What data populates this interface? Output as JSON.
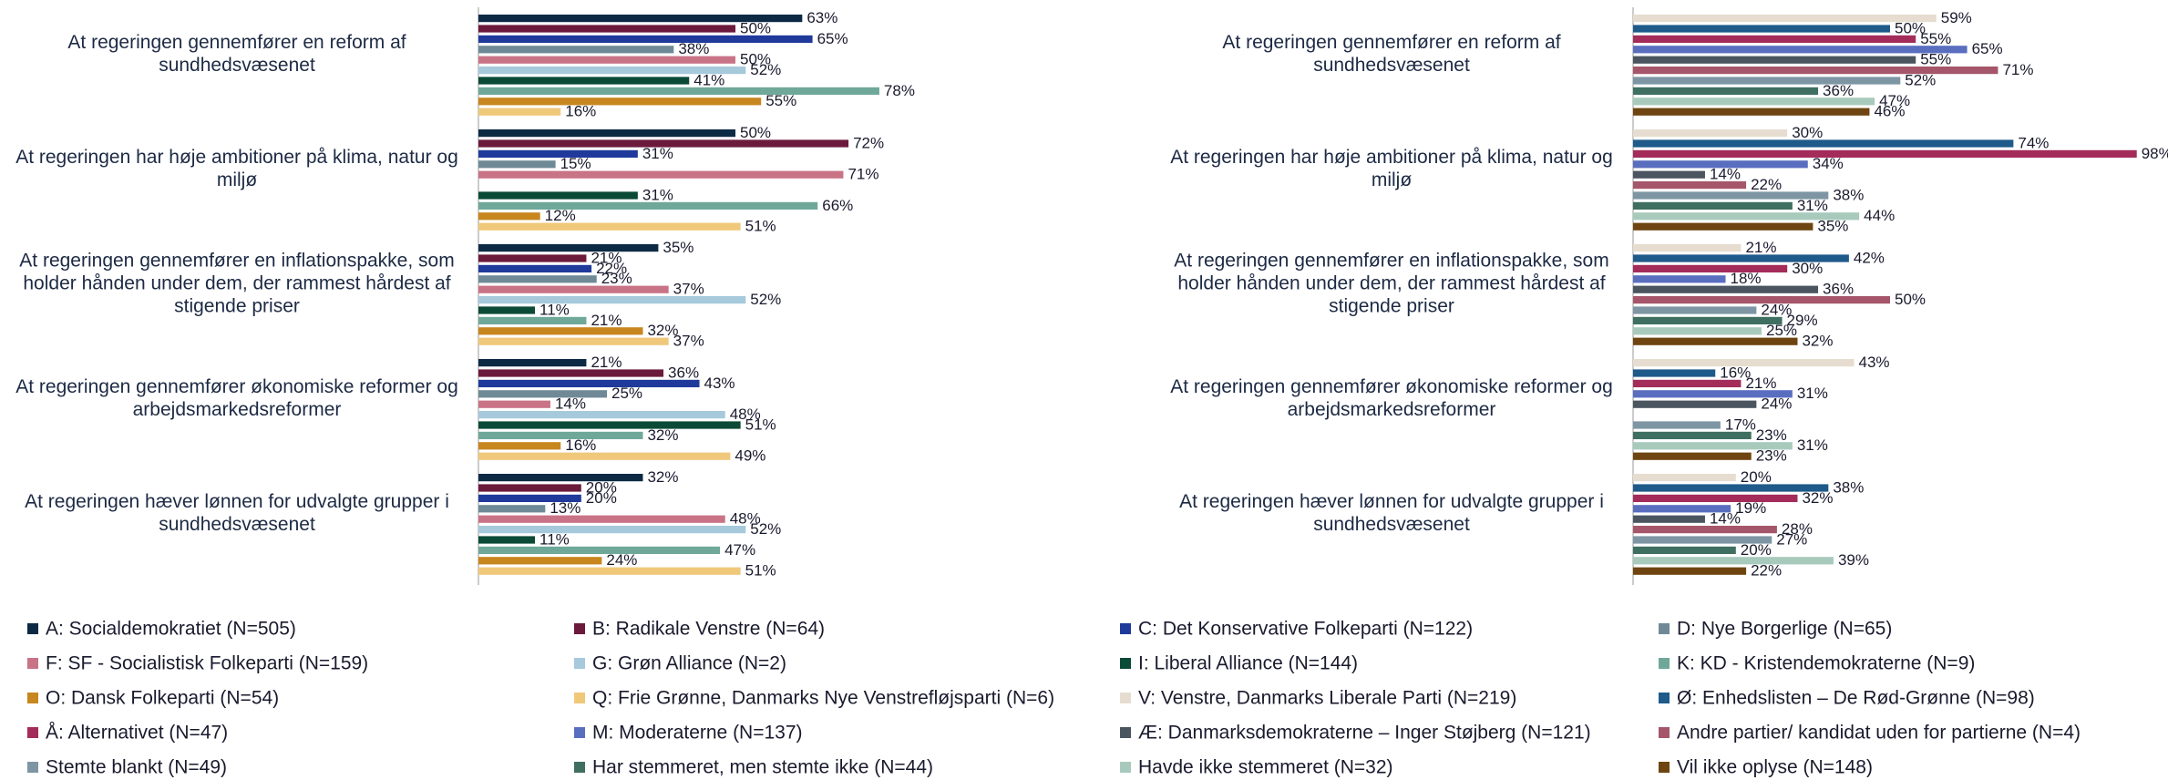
{
  "chart_data": [
    {
      "type": "bar",
      "categories": [
        "At regeringen gennemfører en reform af sundhedsvæsenet",
        "At regeringen har høje ambitioner på klima, natur og miljø",
        "At regeringen gennemfører en inflationspakke, som holder hånden under dem, der rammest hårdest af stigende priser",
        "At regeringen gennemfører økonomiske reformer og arbejdsmarkedsreformer",
        "At regeringen hæver lønnen for udvalgte grupper i sundhedsvæsenet"
      ],
      "xlim": [
        0,
        100
      ],
      "series": [
        {
          "name": "A: Socialdemokratiet (N=505)",
          "color": "#0d2a45",
          "values": [
            63,
            50,
            35,
            21,
            32
          ],
          "value_labels": [
            "63%",
            "50%",
            "35%",
            "21%",
            "32%"
          ]
        },
        {
          "name": "B: Radikale Venstre (N=64)",
          "color": "#6b1a3c",
          "values": [
            50,
            72,
            21,
            36,
            20
          ],
          "value_labels": [
            "50%",
            "72%",
            "21%",
            "36%",
            "20%"
          ]
        },
        {
          "name": "C: Det Konservative Folkeparti (N=122)",
          "color": "#1f3a9b",
          "values": [
            65,
            31,
            22,
            43,
            20
          ],
          "value_labels": [
            "65%",
            "31%",
            "22%",
            "43%",
            "20%"
          ]
        },
        {
          "name": "D: Nye Borgerlige (N=65)",
          "color": "#6f8a96",
          "values": [
            38,
            15,
            23,
            25,
            13
          ],
          "value_labels": [
            "38%",
            "15%",
            "23%",
            "25%",
            "13%"
          ]
        },
        {
          "name": "F: SF - Socialistisk Folkeparti (N=159)",
          "color": "#c97387",
          "values": [
            50,
            71,
            37,
            14,
            48
          ],
          "value_labels": [
            "50%",
            "71%",
            "37%",
            "14%",
            "48%"
          ]
        },
        {
          "name": "G: Grøn Alliance (N=2)",
          "color": "#a6c9dc",
          "values": [
            52,
            null,
            52,
            48,
            52
          ],
          "value_labels": [
            "52%",
            null,
            "52%",
            "48%",
            "52%"
          ]
        },
        {
          "name": "I: Liberal Alliance (N=144)",
          "color": "#0b4a36",
          "values": [
            41,
            31,
            11,
            51,
            11
          ],
          "value_labels": [
            "41%",
            "31%",
            "11%",
            "51%",
            "11%"
          ]
        },
        {
          "name": "K: KD - Kristendemokraterne (N=9)",
          "color": "#6fa899",
          "values": [
            78,
            66,
            21,
            32,
            47
          ],
          "value_labels": [
            "78%",
            "66%",
            "21%",
            "32%",
            "47%"
          ]
        },
        {
          "name": "O: Dansk Folkeparti (N=54)",
          "color": "#c8861e",
          "values": [
            55,
            12,
            32,
            16,
            24
          ],
          "value_labels": [
            "55%",
            "12%",
            "32%",
            "16%",
            "24%"
          ]
        },
        {
          "name": "Q: Frie Grønne, Danmarks Nye Venstrefløjsparti (N=6)",
          "color": "#f0c87a",
          "values": [
            16,
            51,
            37,
            49,
            51
          ],
          "value_labels": [
            "16%",
            "51%",
            "37%",
            "49%",
            "51%"
          ]
        }
      ]
    },
    {
      "type": "bar",
      "categories": [
        "At regeringen gennemfører en reform af sundhedsvæsenet",
        "At regeringen har høje ambitioner på klima, natur og miljø",
        "At regeringen gennemfører en inflationspakke, som holder hånden under dem, der rammest hårdest af stigende priser",
        "At regeringen gennemfører økonomiske reformer og arbejdsmarkedsreformer",
        "At regeringen hæver lønnen for udvalgte grupper i sundhedsvæsenet"
      ],
      "xlim": [
        0,
        100
      ],
      "series": [
        {
          "name": "V: Venstre, Danmarks Liberale Parti (N=219)",
          "color": "#e6ddd0",
          "values": [
            59,
            30,
            21,
            43,
            20
          ],
          "value_labels": [
            "59%",
            "30%",
            "21%",
            "43%",
            "20%"
          ]
        },
        {
          "name": "Ø: Enhedslisten – De Rød-Grønne (N=98)",
          "color": "#1e5a8a",
          "values": [
            50,
            74,
            42,
            16,
            38
          ],
          "value_labels": [
            "50%",
            "74%",
            "42%",
            "16%",
            "38%"
          ]
        },
        {
          "name": "Å: Alternativet (N=47)",
          "color": "#a32c5a",
          "values": [
            55,
            98,
            30,
            21,
            32
          ],
          "value_labels": [
            "55%",
            "98%",
            "30%",
            "21%",
            "32%"
          ]
        },
        {
          "name": "M: Moderaterne (N=137)",
          "color": "#5a6ec0",
          "values": [
            65,
            34,
            18,
            31,
            19
          ],
          "value_labels": [
            "65%",
            "34%",
            "18%",
            "31%",
            "19%"
          ]
        },
        {
          "name": "Æ: Danmarksdemokraterne – Inger Støjberg (N=121)",
          "color": "#4a5560",
          "values": [
            55,
            14,
            36,
            24,
            14
          ],
          "value_labels": [
            "55%",
            "14%",
            "36%",
            "24%",
            "14%"
          ]
        },
        {
          "name": "Andre partier/ kandidat uden for partierne (N=4)",
          "color": "#a5566a",
          "values": [
            71,
            22,
            50,
            null,
            28
          ],
          "value_labels": [
            "71%",
            "22%",
            "50%",
            null,
            "28%"
          ]
        },
        {
          "name": "Stemte blankt (N=49)",
          "color": "#7e96a4",
          "values": [
            52,
            38,
            24,
            17,
            27
          ],
          "value_labels": [
            "52%",
            "38%",
            "24%",
            "17%",
            "27%"
          ]
        },
        {
          "name": "Har stemmeret, men stemte ikke (N=44)",
          "color": "#3f6f60",
          "values": [
            36,
            31,
            29,
            23,
            20
          ],
          "value_labels": [
            "36%",
            "31%",
            "29%",
            "23%",
            "20%"
          ]
        },
        {
          "name": "Havde ikke stemmeret (N=32)",
          "color": "#a8cabd",
          "values": [
            47,
            44,
            25,
            31,
            39
          ],
          "value_labels": [
            "47%",
            "44%",
            "25%",
            "31%",
            "39%"
          ]
        },
        {
          "name": "Vil ikke oplyse (N=148)",
          "color": "#6e4510",
          "values": [
            46,
            35,
            32,
            23,
            22
          ],
          "value_labels": [
            "46%",
            "35%",
            "32%",
            "23%",
            "22%"
          ]
        }
      ]
    }
  ]
}
